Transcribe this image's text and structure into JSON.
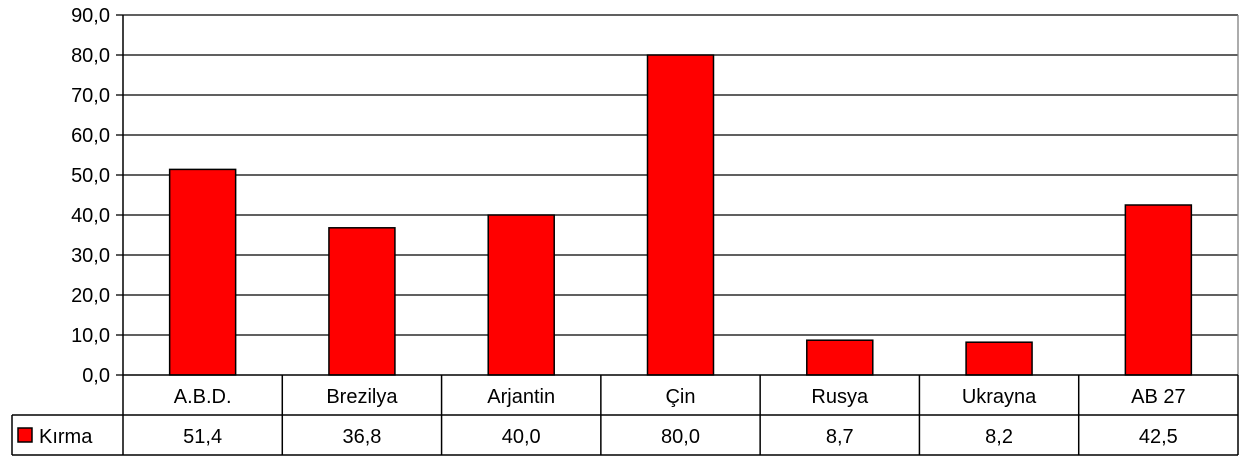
{
  "chart_data": {
    "type": "bar",
    "categories": [
      "A.B.D.",
      "Brezilya",
      "Arjantin",
      "Çin",
      "Rusya",
      "Ukrayna",
      "AB 27"
    ],
    "series": [
      {
        "name": "Kırma",
        "values": [
          51.4,
          36.8,
          40.0,
          80.0,
          8.7,
          8.2,
          42.5
        ],
        "color": "#ff0000"
      }
    ],
    "value_labels": [
      "51,4",
      "36,8",
      "40,0",
      "80,0",
      "8,7",
      "8,2",
      "42,5"
    ],
    "ylim": [
      0,
      90
    ],
    "yticks": [
      0,
      10,
      20,
      30,
      40,
      50,
      60,
      70,
      80,
      90
    ],
    "ytick_labels": [
      "0,0",
      "10,0",
      "20,0",
      "30,0",
      "40,0",
      "50,0",
      "60,0",
      "70,0",
      "80,0",
      "90,0"
    ],
    "grid": true,
    "legend": "data-table",
    "title": "",
    "xlabel": "",
    "ylabel": ""
  }
}
